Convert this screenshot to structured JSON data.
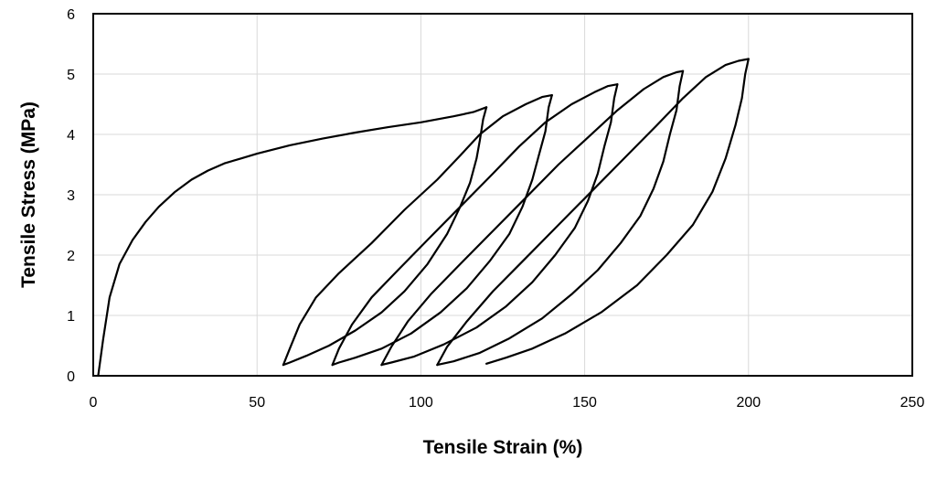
{
  "chart_data": {
    "type": "line",
    "title": "",
    "xlabel": "Tensile Strain (%)",
    "ylabel": "Tensile Stress (MPa)",
    "xlim": [
      0,
      250
    ],
    "ylim": [
      0,
      6
    ],
    "xticks": [
      0,
      50,
      100,
      150,
      200,
      250
    ],
    "yticks": [
      0,
      1,
      2,
      3,
      4,
      5,
      6
    ],
    "xtick_labels": [
      "0",
      "50",
      "100",
      "150",
      "200",
      "250"
    ],
    "ytick_labels": [
      "0",
      "1",
      "2",
      "3",
      "4",
      "5",
      "6"
    ],
    "grid": true,
    "legend": "none",
    "line_color": "#000000",
    "series": [
      {
        "points": [
          [
            1.5,
            0
          ],
          [
            3,
            0.6
          ],
          [
            5,
            1.3
          ],
          [
            8,
            1.85
          ],
          [
            12,
            2.25
          ],
          [
            16,
            2.55
          ],
          [
            20,
            2.8
          ],
          [
            25,
            3.05
          ],
          [
            30,
            3.25
          ],
          [
            35,
            3.4
          ],
          [
            40,
            3.52
          ],
          [
            45,
            3.6
          ],
          [
            50,
            3.68
          ],
          [
            60,
            3.82
          ],
          [
            70,
            3.93
          ],
          [
            80,
            4.03
          ],
          [
            90,
            4.12
          ],
          [
            100,
            4.2
          ],
          [
            110,
            4.3
          ],
          [
            116,
            4.37
          ],
          [
            120,
            4.45
          ]
        ]
      },
      {
        "points": [
          [
            120,
            4.45
          ],
          [
            119,
            4.25
          ],
          [
            118,
            3.9
          ],
          [
            117,
            3.6
          ],
          [
            115,
            3.2
          ],
          [
            112,
            2.8
          ],
          [
            108,
            2.35
          ],
          [
            102,
            1.85
          ],
          [
            95,
            1.4
          ],
          [
            88,
            1.05
          ],
          [
            80,
            0.75
          ],
          [
            72,
            0.5
          ],
          [
            65,
            0.33
          ],
          [
            60,
            0.22
          ],
          [
            58,
            0.18
          ]
        ]
      },
      {
        "points": [
          [
            58,
            0.18
          ],
          [
            60,
            0.45
          ],
          [
            63,
            0.85
          ],
          [
            68,
            1.3
          ],
          [
            75,
            1.7
          ],
          [
            85,
            2.2
          ],
          [
            95,
            2.75
          ],
          [
            105,
            3.25
          ],
          [
            112,
            3.65
          ],
          [
            118,
            4.0
          ],
          [
            125,
            4.3
          ],
          [
            132,
            4.5
          ],
          [
            137,
            4.62
          ],
          [
            140,
            4.65
          ]
        ]
      },
      {
        "points": [
          [
            140,
            4.65
          ],
          [
            139,
            4.45
          ],
          [
            138,
            4.05
          ],
          [
            136,
            3.65
          ],
          [
            134,
            3.25
          ],
          [
            131,
            2.8
          ],
          [
            127,
            2.35
          ],
          [
            121,
            1.9
          ],
          [
            114,
            1.45
          ],
          [
            106,
            1.05
          ],
          [
            97,
            0.7
          ],
          [
            88,
            0.45
          ],
          [
            80,
            0.3
          ],
          [
            75,
            0.22
          ],
          [
            73,
            0.18
          ]
        ]
      },
      {
        "points": [
          [
            73,
            0.18
          ],
          [
            75,
            0.45
          ],
          [
            79,
            0.85
          ],
          [
            85,
            1.3
          ],
          [
            93,
            1.75
          ],
          [
            102,
            2.25
          ],
          [
            112,
            2.8
          ],
          [
            122,
            3.35
          ],
          [
            130,
            3.8
          ],
          [
            138,
            4.2
          ],
          [
            146,
            4.5
          ],
          [
            153,
            4.7
          ],
          [
            157,
            4.8
          ],
          [
            160,
            4.83
          ]
        ]
      },
      {
        "points": [
          [
            160,
            4.83
          ],
          [
            159,
            4.6
          ],
          [
            158,
            4.2
          ],
          [
            156,
            3.8
          ],
          [
            154,
            3.35
          ],
          [
            151,
            2.9
          ],
          [
            147,
            2.45
          ],
          [
            141,
            2.0
          ],
          [
            134,
            1.55
          ],
          [
            126,
            1.15
          ],
          [
            117,
            0.8
          ],
          [
            107,
            0.52
          ],
          [
            98,
            0.32
          ],
          [
            91,
            0.22
          ],
          [
            88,
            0.18
          ]
        ]
      },
      {
        "points": [
          [
            88,
            0.18
          ],
          [
            91,
            0.48
          ],
          [
            96,
            0.9
          ],
          [
            103,
            1.35
          ],
          [
            112,
            1.85
          ],
          [
            122,
            2.4
          ],
          [
            132,
            2.95
          ],
          [
            142,
            3.5
          ],
          [
            151,
            3.95
          ],
          [
            160,
            4.4
          ],
          [
            168,
            4.75
          ],
          [
            174,
            4.95
          ],
          [
            178,
            5.03
          ],
          [
            180,
            5.05
          ]
        ]
      },
      {
        "points": [
          [
            180,
            5.05
          ],
          [
            179,
            4.8
          ],
          [
            178,
            4.4
          ],
          [
            176,
            4.0
          ],
          [
            174,
            3.55
          ],
          [
            171,
            3.1
          ],
          [
            167,
            2.65
          ],
          [
            161,
            2.2
          ],
          [
            154,
            1.75
          ],
          [
            146,
            1.35
          ],
          [
            137,
            0.95
          ],
          [
            127,
            0.62
          ],
          [
            118,
            0.38
          ],
          [
            110,
            0.24
          ],
          [
            105,
            0.18
          ]
        ]
      },
      {
        "points": [
          [
            105,
            0.18
          ],
          [
            108,
            0.48
          ],
          [
            114,
            0.9
          ],
          [
            122,
            1.4
          ],
          [
            132,
            1.95
          ],
          [
            142,
            2.5
          ],
          [
            152,
            3.05
          ],
          [
            162,
            3.6
          ],
          [
            172,
            4.15
          ],
          [
            180,
            4.6
          ],
          [
            187,
            4.95
          ],
          [
            193,
            5.15
          ],
          [
            197,
            5.22
          ],
          [
            200,
            5.25
          ]
        ]
      },
      {
        "points": [
          [
            200,
            5.25
          ],
          [
            199,
            5.0
          ],
          [
            198,
            4.6
          ],
          [
            196,
            4.15
          ],
          [
            193,
            3.6
          ],
          [
            189,
            3.05
          ],
          [
            183,
            2.5
          ],
          [
            175,
            2.0
          ],
          [
            166,
            1.5
          ],
          [
            155,
            1.05
          ],
          [
            144,
            0.7
          ],
          [
            134,
            0.45
          ],
          [
            126,
            0.3
          ],
          [
            120,
            0.2
          ]
        ]
      }
    ]
  }
}
